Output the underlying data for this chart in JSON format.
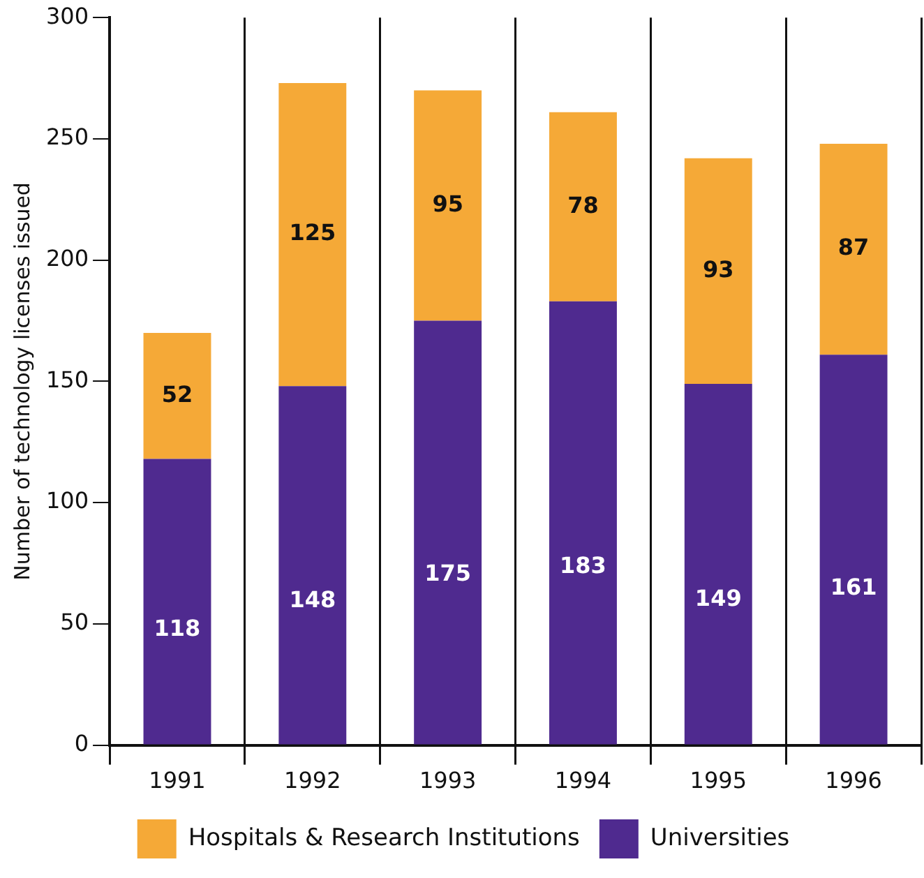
{
  "chart_data": {
    "type": "bar",
    "stacked": true,
    "ylabel": "Number of technology licenses issued",
    "categories": [
      "1991",
      "1992",
      "1993",
      "1994",
      "1995",
      "1996"
    ],
    "series": [
      {
        "name": "Universities",
        "color": "#4f2a8f",
        "values": [
          118,
          148,
          175,
          183,
          149,
          161
        ]
      },
      {
        "name": "Hospitals & Research Institutions",
        "color": "#f5a937",
        "values": [
          52,
          125,
          95,
          78,
          93,
          87
        ]
      }
    ],
    "ylim": [
      0,
      300
    ],
    "yticks": [
      0,
      50,
      100,
      150,
      200,
      250,
      300
    ],
    "grid": "x",
    "legend": "bottom",
    "data_labels": true
  }
}
